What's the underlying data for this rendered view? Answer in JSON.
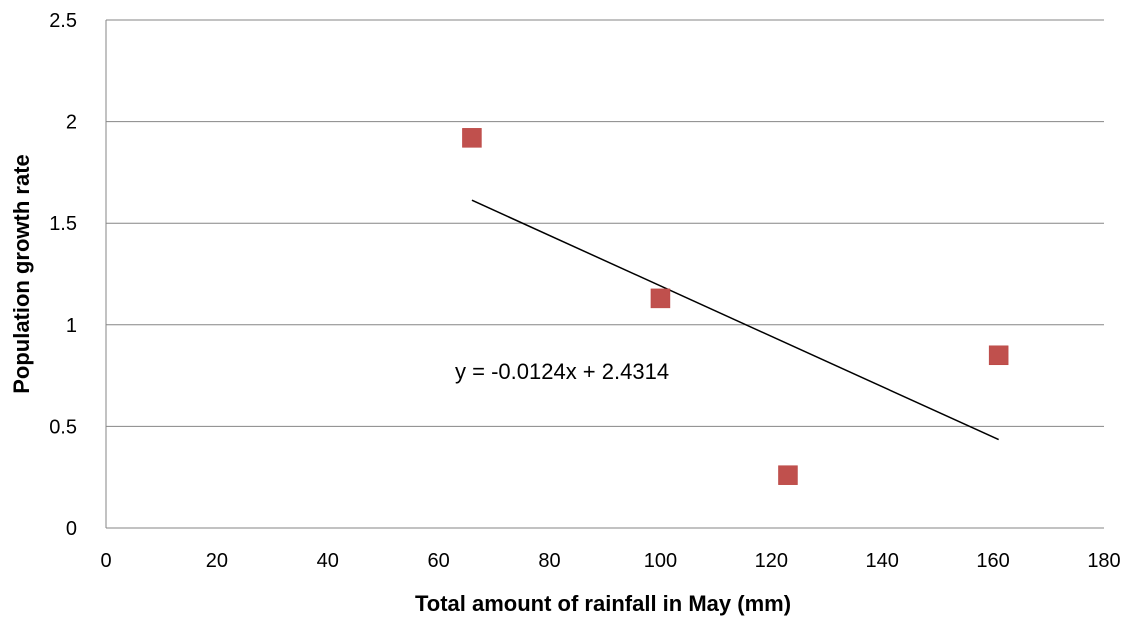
{
  "chart_data": {
    "type": "scatter",
    "title": "",
    "xlabel": "Total amount of rainfall in May (mm)",
    "ylabel": "Population growth rate",
    "xlim": [
      0,
      180
    ],
    "ylim": [
      0,
      2.5
    ],
    "xticks": [
      0,
      20,
      40,
      60,
      80,
      100,
      120,
      140,
      160,
      180
    ],
    "yticks": [
      0,
      0.5,
      1,
      1.5,
      2,
      2.5
    ],
    "grid": "horizontal",
    "series": [
      {
        "x": [
          66,
          100,
          123,
          161
        ],
        "y": [
          1.92,
          1.13,
          0.26,
          0.85
        ],
        "color": "#C0504D",
        "marker": "square"
      }
    ],
    "trendline": {
      "type": "linear",
      "slope": -0.0124,
      "intercept": 2.4314,
      "x_range": [
        66,
        161
      ],
      "color": "#000000",
      "equation_label": "y = -0.0124x + 2.4314"
    }
  }
}
